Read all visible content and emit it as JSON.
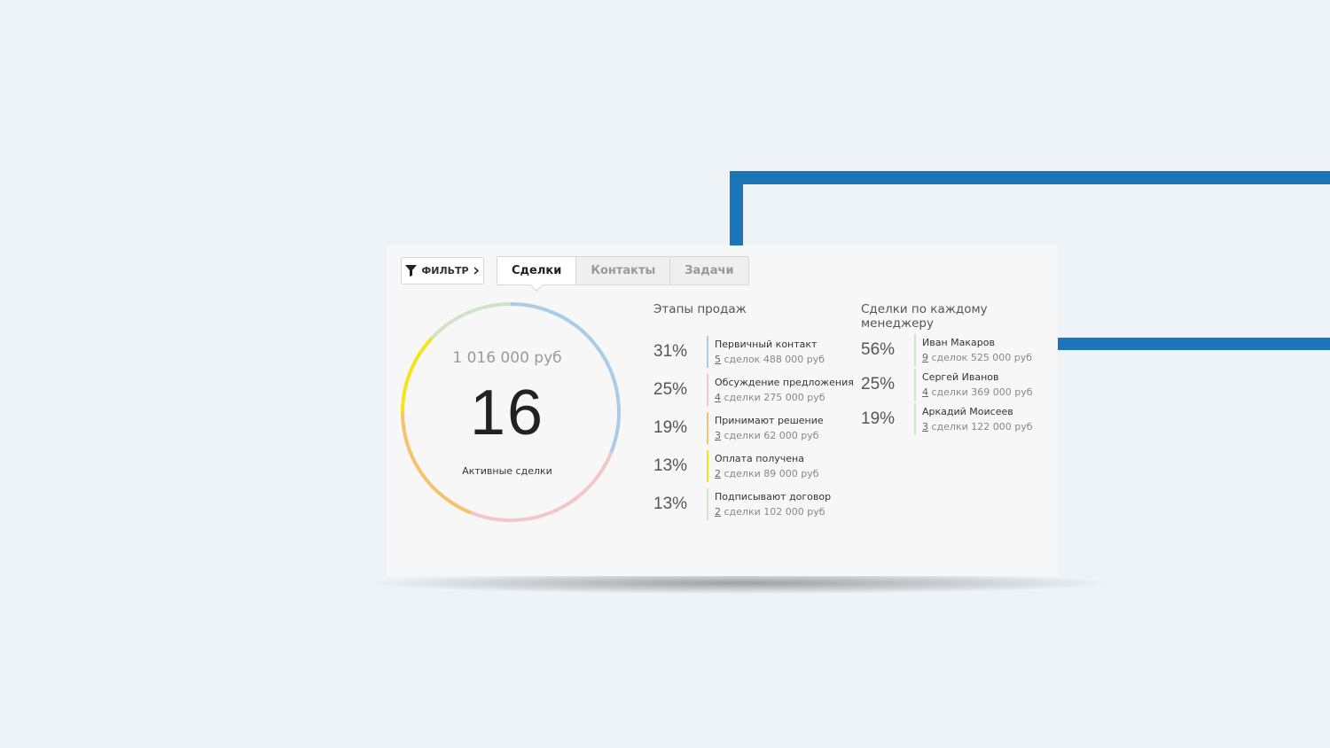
{
  "colors": {
    "accent_blue": "#1a76b8",
    "ring_blue": "#a9cce9",
    "ring_pink": "#f4c6c8",
    "ring_orange": "#f6c36a",
    "ring_yellow": "#f2e51a",
    "ring_green": "#cfe3c6"
  },
  "toolbar": {
    "filter_label": "ФИЛЬТР",
    "filter_icon": "funnel-icon",
    "chevron_icon": "chevron-right-icon"
  },
  "tabs": [
    {
      "label": "Сделки",
      "active": true
    },
    {
      "label": "Контакты",
      "active": false
    },
    {
      "label": "Задачи",
      "active": false
    }
  ],
  "summary": {
    "amount": "1 016 000 руб",
    "count": "16",
    "label": "Активные сделки"
  },
  "stages": {
    "title": "Этапы продаж",
    "items": [
      {
        "percent": "31%",
        "name": "Первичный контакт",
        "deals_num": "5",
        "deals_rest": " сделок 488 000 руб",
        "color": "#a9cce9",
        "fraction": 0.31
      },
      {
        "percent": "25%",
        "name": "Обсуждение предложения",
        "deals_num": "4",
        "deals_rest": " сделки 275 000 руб",
        "color": "#f4c6c8",
        "fraction": 0.25
      },
      {
        "percent": "19%",
        "name": "Принимают решение",
        "deals_num": "3",
        "deals_rest": " сделки 62 000 руб",
        "color": "#f6c36a",
        "fraction": 0.19
      },
      {
        "percent": "13%",
        "name": "Оплата получена",
        "deals_num": "2",
        "deals_rest": " сделки 89 000 руб",
        "color": "#f2e51a",
        "fraction": 0.12
      },
      {
        "percent": "13%",
        "name": "Подписывают договор",
        "deals_num": "2",
        "deals_rest": " сделки 102 000 руб",
        "color": "#cfe3c6",
        "fraction": 0.13
      }
    ]
  },
  "managers": {
    "title": "Сделки по каждому менеджеру",
    "items": [
      {
        "percent": "56%",
        "name": "Иван Макаров",
        "deals_num": "9",
        "deals_rest": " сделок 525 000 руб"
      },
      {
        "percent": "25%",
        "name": "Сергей Иванов",
        "deals_num": "4",
        "deals_rest": " сделки 369 000 руб"
      },
      {
        "percent": "19%",
        "name": "Аркадий Моисеев",
        "deals_num": "3",
        "deals_rest": " сделки 122 000 руб"
      }
    ]
  }
}
